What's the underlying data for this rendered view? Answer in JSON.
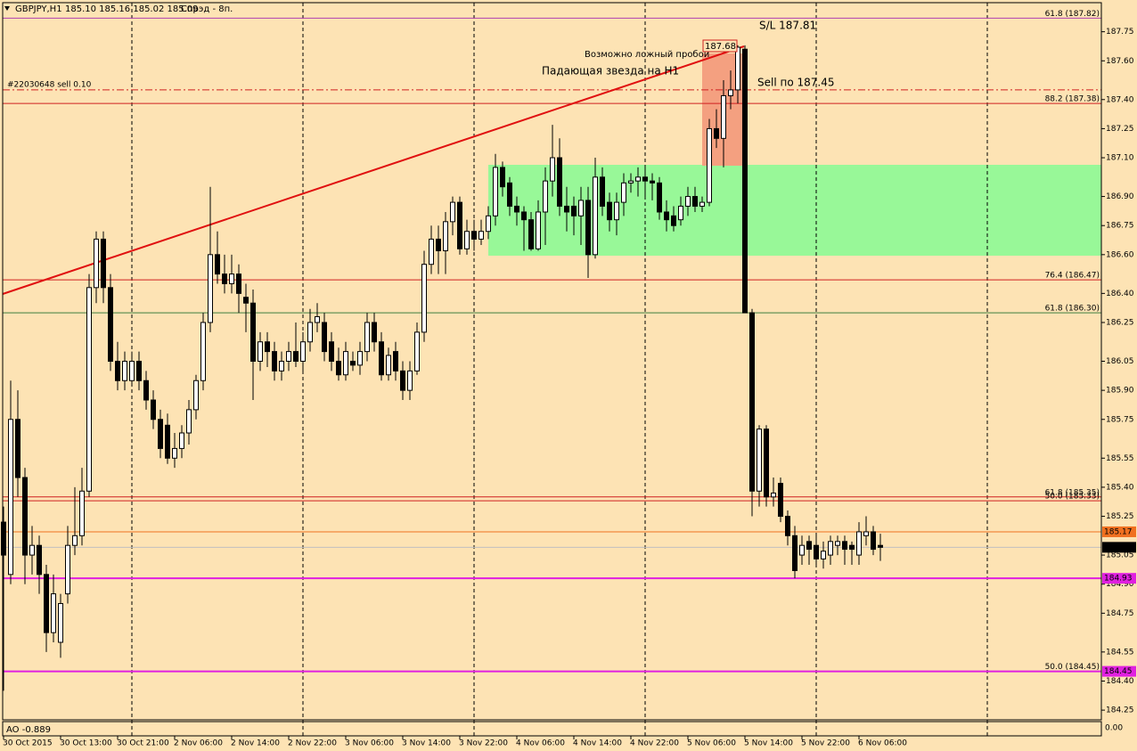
{
  "chart_data": {
    "type": "candlestick",
    "title": "GBPJPY,H1",
    "subtitle": "185.10 185.16 185.02 185.09",
    "spread": "Спрэд - 8п.",
    "ylim": [
      184.2,
      187.9
    ],
    "yticks": [
      {
        "value": 187.75,
        "label": "187.75"
      },
      {
        "value": 187.6,
        "label": "187.60"
      },
      {
        "value": 187.4,
        "label": "187.40"
      },
      {
        "value": 187.25,
        "label": "187.25"
      },
      {
        "value": 187.1,
        "label": "187.10"
      },
      {
        "value": 186.9,
        "label": "186.90"
      },
      {
        "value": 186.75,
        "label": "186.75"
      },
      {
        "value": 186.6,
        "label": "186.60"
      },
      {
        "value": 186.4,
        "label": "186.40"
      },
      {
        "value": 186.25,
        "label": "186.25"
      },
      {
        "value": 186.05,
        "label": "186.05"
      },
      {
        "value": 185.9,
        "label": "185.90"
      },
      {
        "value": 185.75,
        "label": "185.75"
      },
      {
        "value": 185.55,
        "label": "185.55"
      },
      {
        "value": 185.4,
        "label": "185.40"
      },
      {
        "value": 185.25,
        "label": "185.25"
      },
      {
        "value": 185.05,
        "label": "185.05"
      },
      {
        "value": 184.9,
        "label": "184.90"
      },
      {
        "value": 184.75,
        "label": "184.75"
      },
      {
        "value": 184.55,
        "label": "184.55"
      },
      {
        "value": 184.4,
        "label": "184.40"
      },
      {
        "value": 184.25,
        "label": "184.25"
      }
    ],
    "xlabels": [
      "30 Oct 2015",
      "30 Oct 13:00",
      "30 Oct 21:00",
      "2 Nov 06:00",
      "2 Nov 14:00",
      "2 Nov 22:00",
      "3 Nov 06:00",
      "3 Nov 14:00",
      "3 Nov 22:00",
      "4 Nov 06:00",
      "4 Nov 14:00",
      "4 Nov 22:00",
      "5 Nov 06:00",
      "5 Nov 14:00",
      "5 Nov 22:00",
      "6 Nov 06:00"
    ],
    "up_color": "#ffffff",
    "down_color": "#000000",
    "candles": [
      [
        185.22,
        185.3,
        184.35,
        185.05
      ],
      [
        184.95,
        185.95,
        184.9,
        185.75
      ],
      [
        185.75,
        185.9,
        185.35,
        185.45
      ],
      [
        185.45,
        185.5,
        184.9,
        185.05
      ],
      [
        185.05,
        185.2,
        184.95,
        185.1
      ],
      [
        185.1,
        185.15,
        184.85,
        184.95
      ],
      [
        184.95,
        185.0,
        184.55,
        184.65
      ],
      [
        184.65,
        184.95,
        184.6,
        184.85
      ],
      [
        184.6,
        184.85,
        184.52,
        184.8
      ],
      [
        184.85,
        185.2,
        184.8,
        185.1
      ],
      [
        185.1,
        185.4,
        185.05,
        185.15
      ],
      [
        185.15,
        185.5,
        185.1,
        185.38
      ],
      [
        185.38,
        186.5,
        185.35,
        186.43
      ],
      [
        186.43,
        186.72,
        186.35,
        186.68
      ],
      [
        186.68,
        186.72,
        186.35,
        186.43
      ],
      [
        186.43,
        186.5,
        186.0,
        186.05
      ],
      [
        186.05,
        186.15,
        185.9,
        185.95
      ],
      [
        185.95,
        186.1,
        185.9,
        186.05
      ],
      [
        185.95,
        186.1,
        185.92,
        186.05
      ],
      [
        186.05,
        186.1,
        185.9,
        185.95
      ],
      [
        185.95,
        186.0,
        185.8,
        185.85
      ],
      [
        185.85,
        185.9,
        185.7,
        185.75
      ],
      [
        185.75,
        185.8,
        185.55,
        185.6
      ],
      [
        185.72,
        185.78,
        185.52,
        185.55
      ],
      [
        185.55,
        185.68,
        185.5,
        185.6
      ],
      [
        185.6,
        185.72,
        185.55,
        185.68
      ],
      [
        185.68,
        185.85,
        185.62,
        185.8
      ],
      [
        185.8,
        185.98,
        185.75,
        185.95
      ],
      [
        185.95,
        186.3,
        185.9,
        186.25
      ],
      [
        186.25,
        186.95,
        186.2,
        186.6
      ],
      [
        186.6,
        186.72,
        186.45,
        186.5
      ],
      [
        186.5,
        186.6,
        186.4,
        186.45
      ],
      [
        186.45,
        186.6,
        186.4,
        186.5
      ],
      [
        186.5,
        186.55,
        186.3,
        186.4
      ],
      [
        186.38,
        186.45,
        186.2,
        186.35
      ],
      [
        186.35,
        186.42,
        185.85,
        186.05
      ],
      [
        186.05,
        186.2,
        186.0,
        186.15
      ],
      [
        186.15,
        186.2,
        186.02,
        186.1
      ],
      [
        186.1,
        186.15,
        185.95,
        186.0
      ],
      [
        186.0,
        186.1,
        185.95,
        186.05
      ],
      [
        186.05,
        186.15,
        186.0,
        186.1
      ],
      [
        186.1,
        186.25,
        186.02,
        186.05
      ],
      [
        186.05,
        186.2,
        186.0,
        186.15
      ],
      [
        186.15,
        186.32,
        186.1,
        186.25
      ],
      [
        186.25,
        186.35,
        186.2,
        186.28
      ],
      [
        186.25,
        186.3,
        186.05,
        186.1
      ],
      [
        186.15,
        186.2,
        186.0,
        186.05
      ],
      [
        186.05,
        186.12,
        185.95,
        185.98
      ],
      [
        185.98,
        186.15,
        185.95,
        186.1
      ],
      [
        186.05,
        186.1,
        186.0,
        186.03
      ],
      [
        186.03,
        186.15,
        185.98,
        186.1
      ],
      [
        186.1,
        186.3,
        186.05,
        186.25
      ],
      [
        186.25,
        186.3,
        186.1,
        186.15
      ],
      [
        186.15,
        186.2,
        185.95,
        185.98
      ],
      [
        185.98,
        186.12,
        185.95,
        186.08
      ],
      [
        186.1,
        186.15,
        185.95,
        186.0
      ],
      [
        186.0,
        186.05,
        185.85,
        185.9
      ],
      [
        185.9,
        186.05,
        185.85,
        186.0
      ],
      [
        186.0,
        186.25,
        185.98,
        186.2
      ],
      [
        186.2,
        186.62,
        186.15,
        186.55
      ],
      [
        186.55,
        186.75,
        186.5,
        186.68
      ],
      [
        186.68,
        186.75,
        186.5,
        186.62
      ],
      [
        186.62,
        186.82,
        186.5,
        186.77
      ],
      [
        186.77,
        186.9,
        186.7,
        186.87
      ],
      [
        186.87,
        186.9,
        186.6,
        186.63
      ],
      [
        186.63,
        186.78,
        186.6,
        186.72
      ],
      [
        186.72,
        186.78,
        186.62,
        186.68
      ],
      [
        186.68,
        186.78,
        186.65,
        186.72
      ],
      [
        186.72,
        186.85,
        186.68,
        186.8
      ],
      [
        186.8,
        187.12,
        186.75,
        187.05
      ],
      [
        187.05,
        187.08,
        186.9,
        186.95
      ],
      [
        186.97,
        187.0,
        186.8,
        186.85
      ],
      [
        186.85,
        186.9,
        186.75,
        186.82
      ],
      [
        186.82,
        186.85,
        186.62,
        186.78
      ],
      [
        186.78,
        186.82,
        186.62,
        186.63
      ],
      [
        186.63,
        186.88,
        186.62,
        186.82
      ],
      [
        186.82,
        187.05,
        186.65,
        186.98
      ],
      [
        186.98,
        187.27,
        186.9,
        187.1
      ],
      [
        187.1,
        187.2,
        186.8,
        186.85
      ],
      [
        186.85,
        186.95,
        186.72,
        186.82
      ],
      [
        186.85,
        186.9,
        186.7,
        186.8
      ],
      [
        186.8,
        186.95,
        186.65,
        186.88
      ],
      [
        186.88,
        186.95,
        186.48,
        186.6
      ],
      [
        186.6,
        187.1,
        186.58,
        187.0
      ],
      [
        187.0,
        187.05,
        186.8,
        186.85
      ],
      [
        186.87,
        186.92,
        186.72,
        186.78
      ],
      [
        186.78,
        186.92,
        186.7,
        186.87
      ],
      [
        186.87,
        187.02,
        186.8,
        186.97
      ],
      [
        186.97,
        187.02,
        186.92,
        186.98
      ],
      [
        186.98,
        187.05,
        186.9,
        187.0
      ],
      [
        187.0,
        187.05,
        186.9,
        186.98
      ],
      [
        186.98,
        187.02,
        186.88,
        186.97
      ],
      [
        186.97,
        187.0,
        186.78,
        186.82
      ],
      [
        186.82,
        186.88,
        186.72,
        186.78
      ],
      [
        186.8,
        186.85,
        186.72,
        186.75
      ],
      [
        186.78,
        186.9,
        186.75,
        186.85
      ],
      [
        186.85,
        186.95,
        186.8,
        186.9
      ],
      [
        186.9,
        186.95,
        186.82,
        186.85
      ],
      [
        186.85,
        186.9,
        186.82,
        186.87
      ],
      [
        186.87,
        187.3,
        186.85,
        187.25
      ],
      [
        187.25,
        187.35,
        187.15,
        187.2
      ],
      [
        187.2,
        187.5,
        187.05,
        187.42
      ],
      [
        187.42,
        187.55,
        187.35,
        187.45
      ],
      [
        187.45,
        187.68,
        187.38,
        187.67
      ],
      [
        187.66,
        187.68,
        186.3,
        186.3
      ],
      [
        186.3,
        186.32,
        185.25,
        185.38
      ],
      [
        185.38,
        185.72,
        185.3,
        185.7
      ],
      [
        185.7,
        185.72,
        185.3,
        185.35
      ],
      [
        185.35,
        185.45,
        185.3,
        185.37
      ],
      [
        185.42,
        185.45,
        185.22,
        185.25
      ],
      [
        185.25,
        185.28,
        185.1,
        185.15
      ],
      [
        185.15,
        185.2,
        184.93,
        184.97
      ],
      [
        185.05,
        185.15,
        185.0,
        185.1
      ],
      [
        185.12,
        185.15,
        185.0,
        185.08
      ],
      [
        185.1,
        185.15,
        185.0,
        185.03
      ],
      [
        185.03,
        185.12,
        184.98,
        185.07
      ],
      [
        185.05,
        185.15,
        185.0,
        185.12
      ],
      [
        185.1,
        185.15,
        185.05,
        185.12
      ],
      [
        185.12,
        185.15,
        185.0,
        185.08
      ],
      [
        185.1,
        185.12,
        185.0,
        185.08
      ],
      [
        185.05,
        185.22,
        185.0,
        185.17
      ],
      [
        185.15,
        185.25,
        185.1,
        185.17
      ],
      [
        185.17,
        185.2,
        185.05,
        185.08
      ],
      [
        185.1,
        185.16,
        185.02,
        185.09
      ]
    ],
    "levels": [
      {
        "value": 187.82,
        "label": "61.8 (187.82)",
        "color": "#b040b0",
        "width": 1
      },
      {
        "value": 187.38,
        "label": "88.2 (187.38)",
        "color": "#d02020",
        "width": 1
      },
      {
        "value": 186.47,
        "label": "76.4 (186.47)",
        "color": "#d02020",
        "width": 1
      },
      {
        "value": 186.3,
        "label": "61.8 (186.30)",
        "color": "#408040",
        "width": 1
      },
      {
        "value": 185.35,
        "label": "61.8 (185.35)",
        "color": "#d02020",
        "width": 1
      },
      {
        "value": 185.33,
        "label": "50.0 (185.33)",
        "color": "#d02020",
        "width": 1
      },
      {
        "value": 185.17,
        "color": "#f07020",
        "width": 1
      },
      {
        "value": 185.09,
        "color": "#c0c0c0",
        "width": 1
      },
      {
        "value": 184.93,
        "color": "#e020e0",
        "width": 2
      },
      {
        "value": 184.45,
        "label": "50.0 (184.45)",
        "color": "#e020e0",
        "width": 2
      }
    ],
    "order_line": {
      "value": 187.45,
      "label": "#22030648 sell 0.10",
      "color": "#d02020"
    },
    "price_labels": [
      {
        "value": 185.17,
        "color": "#f07020"
      },
      {
        "value": 185.09,
        "color": "#000000"
      },
      {
        "value": 184.93,
        "color": "#e020e0"
      },
      {
        "value": 184.45,
        "color": "#e020e0"
      }
    ],
    "annotations": [
      "S/L 187.81",
      "Sell по 187.45",
      "Возможно ложный пробой",
      "Падающая звезда на H1",
      "187.68"
    ],
    "indicator": {
      "label": "AO -0.889",
      "scale_label": "0.00"
    }
  }
}
